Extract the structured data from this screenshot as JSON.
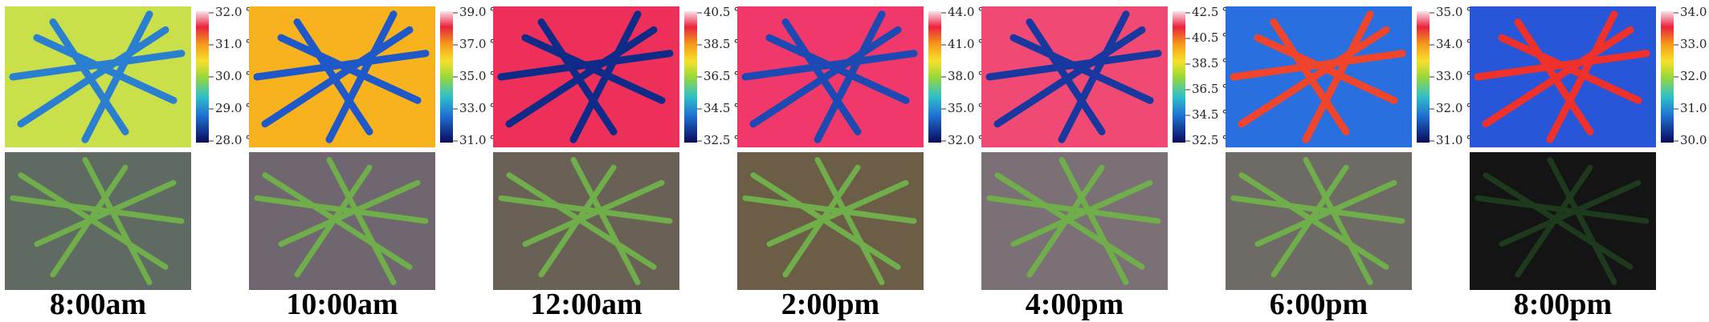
{
  "panels": [
    {
      "time": "8:00am",
      "scale": [
        "32.0 ℃",
        "31.0 ℃",
        "30.0 ℃",
        "29.0 ℃",
        "28.0 ℃"
      ]
    },
    {
      "time": "10:00am",
      "scale": [
        "39.0 ℃",
        "37.0 ℃",
        "35.0 ℃",
        "33.0 ℃",
        "31.0 ℃"
      ]
    },
    {
      "time": "12:00am",
      "scale": [
        "40.5 ℃",
        "38.5 ℃",
        "36.5 ℃",
        "34.5 ℃",
        "32.5 ℃"
      ]
    },
    {
      "time": "2:00pm",
      "scale": [
        "44.0 ℃",
        "41.0 ℃",
        "38.0 ℃",
        "35.0 ℃",
        "32.0 ℃"
      ]
    },
    {
      "time": "4:00pm",
      "scale": [
        "42.5 ℃",
        "40.5 ℃",
        "38.5 ℃",
        "36.5 ℃",
        "34.5 ℃",
        "32.5 ℃"
      ]
    },
    {
      "time": "6:00pm",
      "scale": [
        "35.0 ℃",
        "34.0 ℃",
        "33.0 ℃",
        "32.0 ℃",
        "31.0 ℃"
      ]
    },
    {
      "time": "8:00pm",
      "scale": [
        "34.0 ℃",
        "33.0 ℃",
        "32.0 ℃",
        "31.0 ℃",
        "30.0 ℃"
      ]
    }
  ]
}
